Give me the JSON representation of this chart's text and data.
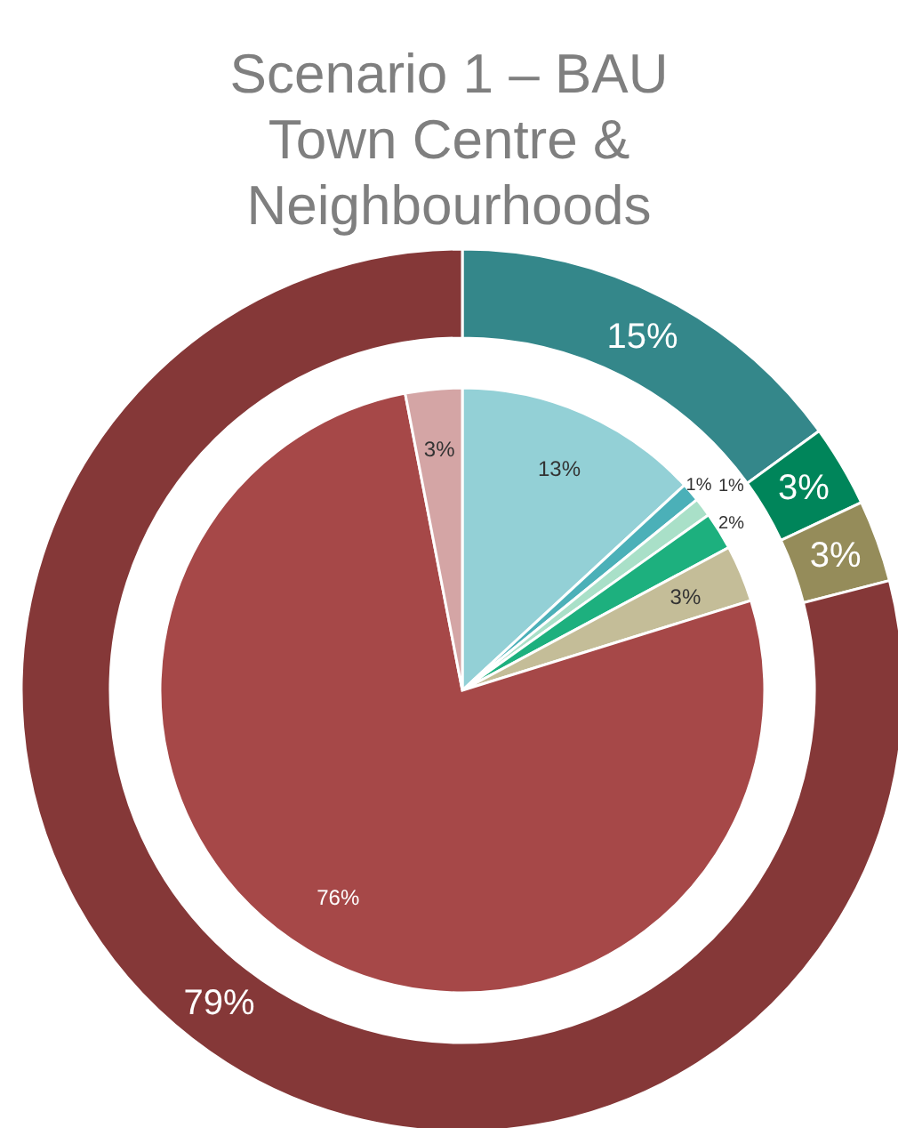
{
  "chart_data": {
    "type": "donut",
    "title": "Scenario 1 – BAU\nTown Centre &\nNeighbourhoods",
    "series": [
      {
        "values": [
          15,
          3,
          3,
          79
        ],
        "colors": [
          "#34878a",
          "#00855a",
          "#958c5a",
          "#853838"
        ],
        "value_labels": [
          "15%",
          "3%",
          "3%",
          "79%"
        ]
      },
      {
        "type": "pie",
        "values": [
          13,
          1,
          1,
          2,
          3,
          76,
          3
        ],
        "colors": [
          "#93d0d6",
          "#4bb0b8",
          "#a9e0c8",
          "#1db07e",
          "#c4bd98",
          "#a64848",
          "#d4a5a5"
        ],
        "value_labels": [
          "13%",
          "1%",
          "1%",
          "2%",
          "3%",
          "76%",
          "3%"
        ]
      }
    ]
  }
}
